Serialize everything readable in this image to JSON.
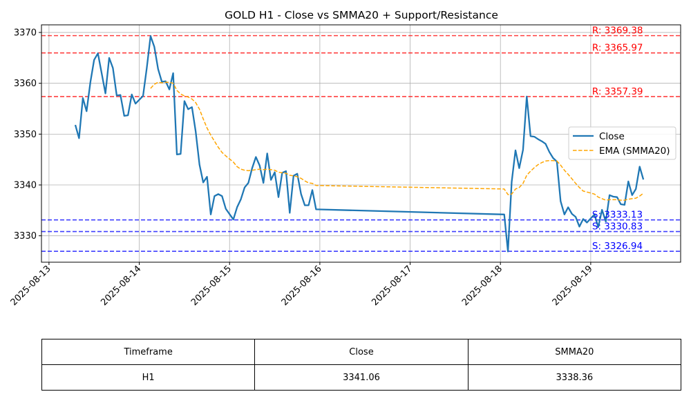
{
  "chart_data": {
    "type": "line",
    "title": "GOLD H1 - Close vs SMMA20 + Support/Resistance",
    "xlabel": "",
    "ylabel": "",
    "x_ticks": [
      "2025-08-13",
      "2025-08-14",
      "2025-08-15",
      "2025-08-16",
      "2025-08-17",
      "2025-08-18",
      "2025-08-19"
    ],
    "y_ticks": [
      3330,
      3340,
      3350,
      3360,
      3370
    ],
    "xlim": [
      "2025-08-12 22:00",
      "2025-08-19 23:54"
    ],
    "ylim": [
      3324.8,
      3371.5
    ],
    "grid": true,
    "legend_position": "center-right",
    "series": [
      {
        "name": "Close",
        "color": "#1f77b4",
        "style": "solid",
        "points": [
          [
            "2025-08-13 07:00",
            3351.8
          ],
          [
            "2025-08-13 08:00",
            3349.2
          ],
          [
            "2025-08-13 09:00",
            3357.1
          ],
          [
            "2025-08-13 10:00",
            3354.5
          ],
          [
            "2025-08-13 11:00",
            3360.2
          ],
          [
            "2025-08-13 12:00",
            3364.6
          ],
          [
            "2025-08-13 13:00",
            3365.9
          ],
          [
            "2025-08-13 14:00",
            3362.0
          ],
          [
            "2025-08-13 15:00",
            3358.0
          ],
          [
            "2025-08-13 16:00",
            3365.0
          ],
          [
            "2025-08-13 17:00",
            3363.0
          ],
          [
            "2025-08-13 18:00",
            3357.6
          ],
          [
            "2025-08-13 19:00",
            3357.7
          ],
          [
            "2025-08-13 20:00",
            3353.6
          ],
          [
            "2025-08-13 21:00",
            3353.7
          ],
          [
            "2025-08-13 22:00",
            3357.8
          ],
          [
            "2025-08-13 23:00",
            3356.0
          ],
          [
            "2025-08-14 01:00",
            3357.5
          ],
          [
            "2025-08-14 02:00",
            3363.0
          ],
          [
            "2025-08-14 03:00",
            3369.3
          ],
          [
            "2025-08-14 04:00",
            3367.2
          ],
          [
            "2025-08-14 05:00",
            3362.8
          ],
          [
            "2025-08-14 06:00",
            3360.3
          ],
          [
            "2025-08-14 07:00",
            3360.4
          ],
          [
            "2025-08-14 08:00",
            3358.8
          ],
          [
            "2025-08-14 09:00",
            3362.0
          ],
          [
            "2025-08-14 10:00",
            3346.0
          ],
          [
            "2025-08-14 11:00",
            3346.1
          ],
          [
            "2025-08-14 12:00",
            3356.5
          ],
          [
            "2025-08-14 13:00",
            3354.9
          ],
          [
            "2025-08-14 14:00",
            3355.3
          ],
          [
            "2025-08-14 15:00",
            3350.5
          ],
          [
            "2025-08-14 16:00",
            3344.0
          ],
          [
            "2025-08-14 17:00",
            3340.5
          ],
          [
            "2025-08-14 18:00",
            3341.6
          ],
          [
            "2025-08-14 19:00",
            3334.2
          ],
          [
            "2025-08-14 20:00",
            3337.8
          ],
          [
            "2025-08-14 21:00",
            3338.2
          ],
          [
            "2025-08-14 22:00",
            3337.8
          ],
          [
            "2025-08-14 23:00",
            3335.3
          ],
          [
            "2025-08-15 01:00",
            3333.2
          ],
          [
            "2025-08-15 02:00",
            3335.6
          ],
          [
            "2025-08-15 03:00",
            3337.2
          ],
          [
            "2025-08-15 04:00",
            3339.5
          ],
          [
            "2025-08-15 05:00",
            3340.4
          ],
          [
            "2025-08-15 06:00",
            3343.3
          ],
          [
            "2025-08-15 07:00",
            3345.5
          ],
          [
            "2025-08-15 08:00",
            3343.8
          ],
          [
            "2025-08-15 09:00",
            3340.4
          ],
          [
            "2025-08-15 10:00",
            3346.2
          ],
          [
            "2025-08-15 11:00",
            3341.0
          ],
          [
            "2025-08-15 12:00",
            3342.5
          ],
          [
            "2025-08-15 13:00",
            3337.6
          ],
          [
            "2025-08-15 14:00",
            3342.4
          ],
          [
            "2025-08-15 15:00",
            3342.7
          ],
          [
            "2025-08-15 16:00",
            3334.5
          ],
          [
            "2025-08-15 17:00",
            3341.8
          ],
          [
            "2025-08-15 18:00",
            3342.2
          ],
          [
            "2025-08-15 19:00",
            3338.2
          ],
          [
            "2025-08-15 20:00",
            3336.0
          ],
          [
            "2025-08-15 21:00",
            3336.0
          ],
          [
            "2025-08-15 22:00",
            3339.0
          ],
          [
            "2025-08-15 23:00",
            3335.2
          ],
          [
            "2025-08-18 01:00",
            3334.2
          ],
          [
            "2025-08-18 02:00",
            3326.9
          ],
          [
            "2025-08-18 03:00",
            3340.6
          ],
          [
            "2025-08-18 04:00",
            3346.8
          ],
          [
            "2025-08-18 05:00",
            3343.3
          ],
          [
            "2025-08-18 06:00",
            3346.9
          ],
          [
            "2025-08-18 07:00",
            3357.4
          ],
          [
            "2025-08-18 08:00",
            3349.6
          ],
          [
            "2025-08-18 09:00",
            3349.5
          ],
          [
            "2025-08-18 10:00",
            3349.0
          ],
          [
            "2025-08-18 11:00",
            3348.6
          ],
          [
            "2025-08-18 12:00",
            3348.1
          ],
          [
            "2025-08-18 13:00",
            3346.5
          ],
          [
            "2025-08-18 14:00",
            3345.3
          ],
          [
            "2025-08-18 15:00",
            3344.6
          ],
          [
            "2025-08-18 16:00",
            3336.8
          ],
          [
            "2025-08-18 17:00",
            3334.2
          ],
          [
            "2025-08-18 18:00",
            3335.6
          ],
          [
            "2025-08-18 19:00",
            3334.3
          ],
          [
            "2025-08-18 20:00",
            3333.7
          ],
          [
            "2025-08-18 21:00",
            3331.8
          ],
          [
            "2025-08-18 22:00",
            3333.3
          ],
          [
            "2025-08-18 23:00",
            3332.6
          ],
          [
            "2025-08-19 01:00",
            3334.2
          ],
          [
            "2025-08-19 02:00",
            3331.7
          ],
          [
            "2025-08-19 03:00",
            3335.1
          ],
          [
            "2025-08-19 04:00",
            3332.8
          ],
          [
            "2025-08-19 05:00",
            3338.0
          ],
          [
            "2025-08-19 06:00",
            3337.7
          ],
          [
            "2025-08-19 07:00",
            3337.6
          ],
          [
            "2025-08-19 08:00",
            3336.2
          ],
          [
            "2025-08-19 09:00",
            3336.1
          ],
          [
            "2025-08-19 10:00",
            3340.7
          ],
          [
            "2025-08-19 11:00",
            3338.0
          ],
          [
            "2025-08-19 12:00",
            3339.2
          ],
          [
            "2025-08-19 13:00",
            3343.6
          ],
          [
            "2025-08-19 14:00",
            3341.06
          ]
        ]
      },
      {
        "name": "EMA (SMMA20)",
        "color": "#ffa500",
        "style": "dashed",
        "points": [
          [
            "2025-08-14 03:00",
            3359.0
          ],
          [
            "2025-08-14 04:00",
            3359.8
          ],
          [
            "2025-08-14 05:00",
            3360.2
          ],
          [
            "2025-08-14 06:00",
            3360.1
          ],
          [
            "2025-08-14 07:00",
            3360.2
          ],
          [
            "2025-08-14 08:00",
            3360.2
          ],
          [
            "2025-08-14 09:00",
            3360.0
          ],
          [
            "2025-08-14 10:00",
            3358.6
          ],
          [
            "2025-08-14 11:00",
            3357.9
          ],
          [
            "2025-08-14 12:00",
            3357.5
          ],
          [
            "2025-08-14 13:00",
            3357.3
          ],
          [
            "2025-08-14 14:00",
            3356.9
          ],
          [
            "2025-08-14 15:00",
            3356.2
          ],
          [
            "2025-08-14 16:00",
            3354.9
          ],
          [
            "2025-08-14 17:00",
            3353.0
          ],
          [
            "2025-08-14 18:00",
            3351.2
          ],
          [
            "2025-08-14 19:00",
            3349.8
          ],
          [
            "2025-08-14 20:00",
            3348.6
          ],
          [
            "2025-08-14 21:00",
            3347.4
          ],
          [
            "2025-08-14 22:00",
            3346.4
          ],
          [
            "2025-08-14 23:00",
            3345.7
          ],
          [
            "2025-08-15 01:00",
            3344.5
          ],
          [
            "2025-08-15 02:00",
            3343.6
          ],
          [
            "2025-08-15 03:00",
            3343.1
          ],
          [
            "2025-08-15 04:00",
            3342.9
          ],
          [
            "2025-08-15 05:00",
            3342.8
          ],
          [
            "2025-08-15 06:00",
            3342.9
          ],
          [
            "2025-08-15 07:00",
            3343.0
          ],
          [
            "2025-08-15 08:00",
            3343.1
          ],
          [
            "2025-08-15 09:00",
            3343.0
          ],
          [
            "2025-08-15 10:00",
            3343.1
          ],
          [
            "2025-08-15 11:00",
            3343.0
          ],
          [
            "2025-08-15 12:00",
            3342.9
          ],
          [
            "2025-08-15 13:00",
            3342.5
          ],
          [
            "2025-08-15 14:00",
            3342.4
          ],
          [
            "2025-08-15 15:00",
            3342.3
          ],
          [
            "2025-08-15 16:00",
            3341.9
          ],
          [
            "2025-08-15 17:00",
            3341.8
          ],
          [
            "2025-08-15 18:00",
            3341.6
          ],
          [
            "2025-08-15 19:00",
            3341.3
          ],
          [
            "2025-08-15 20:00",
            3340.8
          ],
          [
            "2025-08-15 21:00",
            3340.4
          ],
          [
            "2025-08-15 22:00",
            3340.3
          ],
          [
            "2025-08-15 23:00",
            3339.9
          ],
          [
            "2025-08-18 01:00",
            3339.2
          ],
          [
            "2025-08-18 02:00",
            3338.1
          ],
          [
            "2025-08-18 03:00",
            3338.2
          ],
          [
            "2025-08-18 04:00",
            3339.2
          ],
          [
            "2025-08-18 05:00",
            3339.5
          ],
          [
            "2025-08-18 06:00",
            3340.3
          ],
          [
            "2025-08-18 07:00",
            3341.9
          ],
          [
            "2025-08-18 08:00",
            3342.7
          ],
          [
            "2025-08-18 09:00",
            3343.4
          ],
          [
            "2025-08-18 10:00",
            3344.0
          ],
          [
            "2025-08-18 11:00",
            3344.4
          ],
          [
            "2025-08-18 12:00",
            3344.7
          ],
          [
            "2025-08-18 13:00",
            3344.8
          ],
          [
            "2025-08-18 14:00",
            3344.8
          ],
          [
            "2025-08-18 15:00",
            3344.7
          ],
          [
            "2025-08-18 16:00",
            3343.9
          ],
          [
            "2025-08-18 17:00",
            3342.9
          ],
          [
            "2025-08-18 18:00",
            3342.1
          ],
          [
            "2025-08-18 19:00",
            3341.2
          ],
          [
            "2025-08-18 20:00",
            3340.3
          ],
          [
            "2025-08-18 21:00",
            3339.5
          ],
          [
            "2025-08-18 22:00",
            3338.8
          ],
          [
            "2025-08-18 23:00",
            3338.6
          ],
          [
            "2025-08-19 01:00",
            3338.2
          ],
          [
            "2025-08-19 02:00",
            3337.6
          ],
          [
            "2025-08-19 03:00",
            3337.3
          ],
          [
            "2025-08-19 04:00",
            3337.0
          ],
          [
            "2025-08-19 05:00",
            3337.1
          ],
          [
            "2025-08-19 06:00",
            3337.1
          ],
          [
            "2025-08-19 07:00",
            3337.1
          ],
          [
            "2025-08-19 08:00",
            3337.0
          ],
          [
            "2025-08-19 09:00",
            3337.0
          ],
          [
            "2025-08-19 10:00",
            3337.2
          ],
          [
            "2025-08-19 11:00",
            3337.3
          ],
          [
            "2025-08-19 12:00",
            3337.4
          ],
          [
            "2025-08-19 13:00",
            3337.8
          ],
          [
            "2025-08-19 14:00",
            3338.36
          ]
        ]
      }
    ],
    "resistance": [
      {
        "value": 3369.38,
        "label": "R: 3369.38"
      },
      {
        "value": 3365.97,
        "label": "R: 3365.97"
      },
      {
        "value": 3357.39,
        "label": "R: 3357.39"
      }
    ],
    "support": [
      {
        "value": 3333.13,
        "label": "S: 3333.13"
      },
      {
        "value": 3330.83,
        "label": "S: 3330.83"
      },
      {
        "value": 3326.94,
        "label": "S: 3326.94"
      }
    ],
    "colors": {
      "resistance": "#ff0000",
      "support": "#0000ff"
    }
  },
  "table": {
    "headers": [
      "Timeframe",
      "Close",
      "SMMA20"
    ],
    "rows": [
      [
        "H1",
        "3341.06",
        "3338.36"
      ]
    ]
  }
}
